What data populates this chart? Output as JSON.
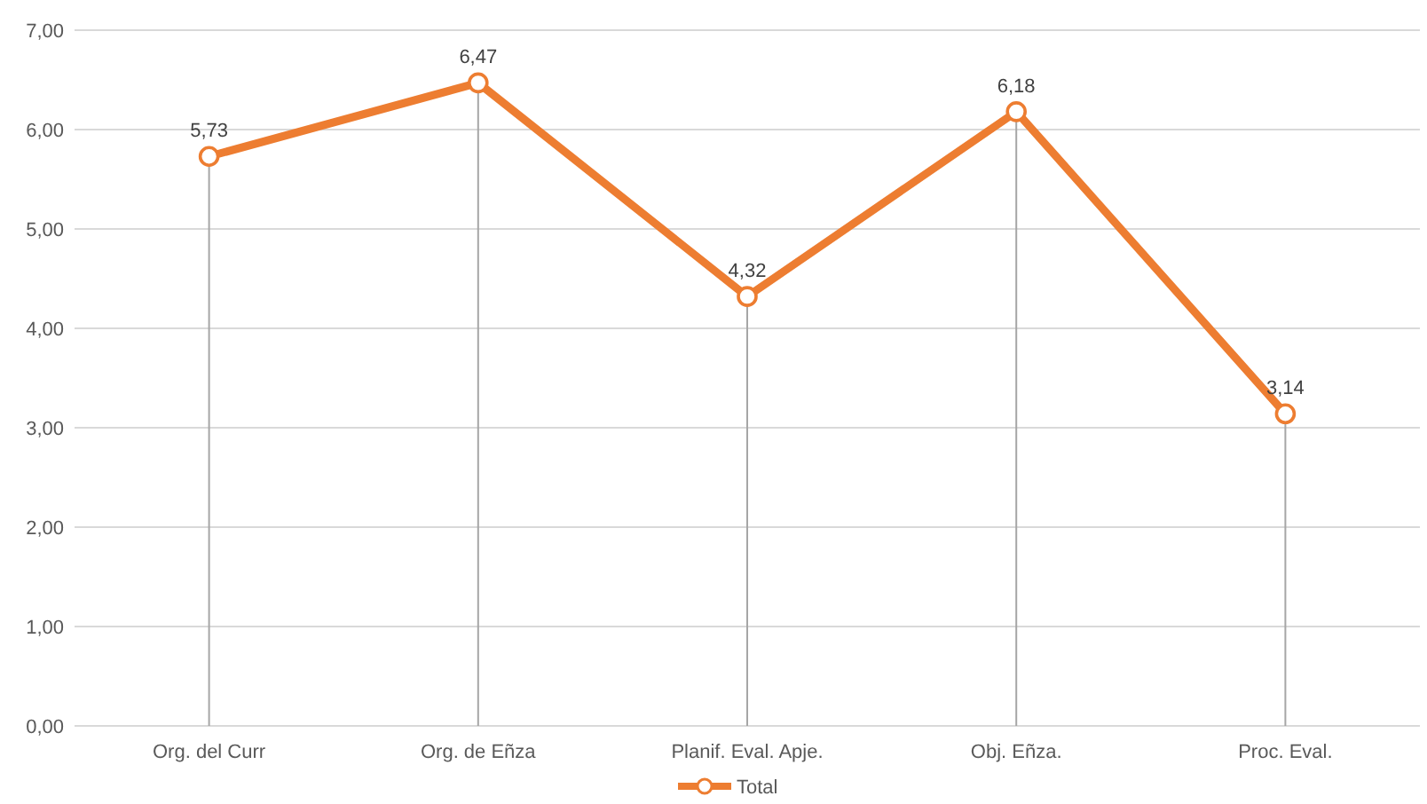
{
  "chart_data": {
    "type": "line",
    "categories": [
      "Org. del Curr",
      "Org. de Eñza",
      "Planif. Eval. Apje.",
      "Obj. Eñza.",
      "Proc. Eval."
    ],
    "series": [
      {
        "name": "Total",
        "color": "#ed7d31",
        "values": [
          5.73,
          6.47,
          4.32,
          6.18,
          3.14
        ]
      }
    ],
    "value_labels": [
      "5,73",
      "6,47",
      "4,32",
      "6,18",
      "3,14"
    ],
    "ylim": [
      0,
      7
    ],
    "yticks": [
      {
        "value": 0,
        "label": "0,00"
      },
      {
        "value": 1,
        "label": "1,00"
      },
      {
        "value": 2,
        "label": "2,00"
      },
      {
        "value": 3,
        "label": "3,00"
      },
      {
        "value": 4,
        "label": "4,00"
      },
      {
        "value": 5,
        "label": "5,00"
      },
      {
        "value": 6,
        "label": "6,00"
      },
      {
        "value": 7,
        "label": "7,00"
      }
    ],
    "grid": true,
    "legend": "bottom",
    "marker": "circle",
    "line_style": "solid"
  }
}
